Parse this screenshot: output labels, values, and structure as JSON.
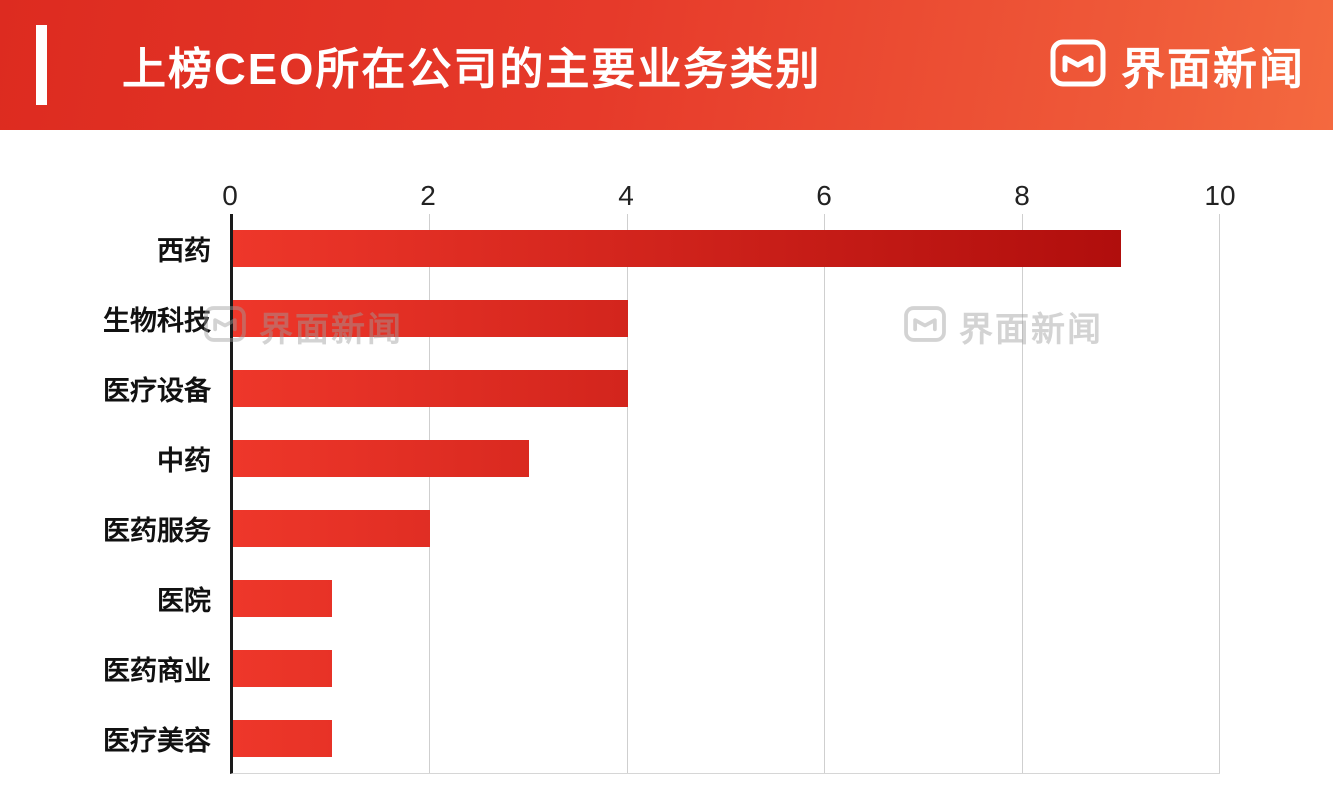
{
  "header": {
    "title": "上榜CEO所在公司的主要业务类别",
    "brand": "界面新闻"
  },
  "watermark": {
    "text": "界面新闻"
  },
  "chart_data": {
    "type": "bar",
    "orientation": "horizontal",
    "title": "上榜CEO所在公司的主要业务类别",
    "categories": [
      "西药",
      "生物科技",
      "医疗设备",
      "中药",
      "医药服务",
      "医院",
      "医药商业",
      "医疗美容"
    ],
    "values": [
      9,
      4,
      4,
      3,
      2,
      1,
      1,
      1
    ],
    "xlim": [
      0,
      10
    ],
    "xticks": [
      0,
      2,
      4,
      6,
      8,
      10
    ],
    "xlabel": "",
    "ylabel": "",
    "grid": true,
    "legend": false,
    "bar_color_start": "#ee372a",
    "bar_color_end": "#a90909",
    "axis_color": "#1a1a1a",
    "gridline_color": "#cfcfcf"
  }
}
